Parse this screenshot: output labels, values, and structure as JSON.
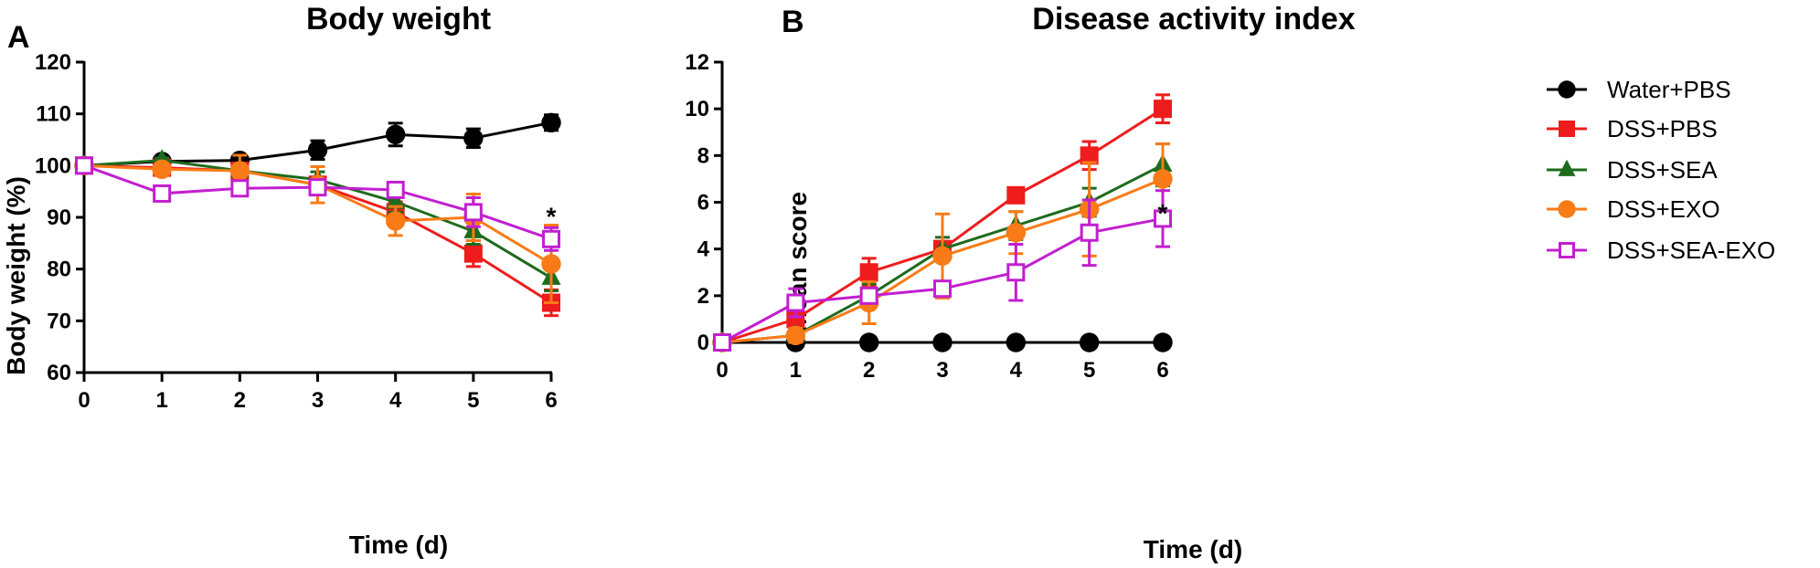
{
  "legend": {
    "position": "top-right",
    "entries": [
      {
        "series": "Water+PBS",
        "color": "#000000",
        "marker": "circle"
      },
      {
        "series": "DSS+PBS",
        "color": "#ee1c1c",
        "marker": "square"
      },
      {
        "series": "DSS+SEA",
        "color": "#1e6b1e",
        "marker": "triangle"
      },
      {
        "series": "DSS+EXO",
        "color": "#f97b17",
        "marker": "circle"
      },
      {
        "series": "DSS+SEA-EXO",
        "color": "#c21fd0",
        "marker": "open-square"
      }
    ]
  },
  "chart_data": [
    {
      "panel": "A",
      "type": "line",
      "title": "Body weight",
      "xlabel": "Time (d)",
      "ylabel": "Body weight (%)",
      "x": [
        0,
        1,
        2,
        3,
        4,
        5,
        6
      ],
      "xlim": [
        0,
        6
      ],
      "ylim": [
        60,
        120
      ],
      "xticks": [
        0,
        1,
        2,
        3,
        4,
        5,
        6
      ],
      "yticks": [
        60,
        70,
        80,
        90,
        100,
        110,
        120
      ],
      "grid": false,
      "annotations": [
        {
          "text": "*",
          "x": 6,
          "y": 91
        }
      ],
      "series": [
        {
          "name": "Water+PBS",
          "values": [
            100,
            100.8,
            101,
            103,
            106,
            105.3,
            108.3
          ],
          "errors": [
            0,
            0.5,
            0.5,
            1.8,
            2.2,
            1.8,
            1.5
          ]
        },
        {
          "name": "DSS+PBS",
          "values": [
            100,
            99.6,
            99,
            96.3,
            91,
            83,
            73.5
          ],
          "errors": [
            0,
            0.5,
            0.6,
            1.5,
            2,
            2.5,
            2.5
          ]
        },
        {
          "name": "DSS+SEA",
          "values": [
            100,
            101,
            99,
            97.3,
            93,
            87.3,
            78.3
          ],
          "errors": [
            0,
            0.5,
            0.6,
            1.5,
            2,
            2.5,
            2.5
          ]
        },
        {
          "name": "DSS+EXO",
          "values": [
            100,
            99.3,
            99,
            96.3,
            89.3,
            90,
            81
          ],
          "errors": [
            0,
            0.8,
            3,
            3.5,
            2.8,
            4.5,
            7.5
          ]
        },
        {
          "name": "DSS+SEA-EXO",
          "values": [
            100,
            94.6,
            95.6,
            95.8,
            95.3,
            91,
            85.8
          ],
          "errors": [
            0,
            1.2,
            0.8,
            0.8,
            0.8,
            2.8,
            2.2
          ]
        }
      ]
    },
    {
      "panel": "B",
      "type": "line",
      "title": "Disease activity index",
      "xlabel": "Time (d)",
      "ylabel": "Mean score",
      "x": [
        0,
        1,
        2,
        3,
        4,
        5,
        6
      ],
      "xlim": [
        0,
        6
      ],
      "ylim": [
        0,
        12
      ],
      "xticks": [
        0,
        1,
        2,
        3,
        4,
        5,
        6
      ],
      "yticks": [
        0,
        2,
        4,
        6,
        8,
        10,
        12
      ],
      "grid": false,
      "annotations": [
        {
          "text": "*",
          "x": 6,
          "y": 5.7
        }
      ],
      "series": [
        {
          "name": "Water+PBS",
          "values": [
            0,
            0,
            0,
            0,
            0,
            0,
            0
          ],
          "errors": [
            0,
            0,
            0,
            0,
            0,
            0,
            0
          ]
        },
        {
          "name": "DSS+PBS",
          "values": [
            0,
            1,
            3,
            4,
            6.3,
            8,
            10
          ],
          "errors": [
            0,
            0.3,
            0.6,
            0.3,
            0.3,
            0.6,
            0.6
          ]
        },
        {
          "name": "DSS+SEA",
          "values": [
            0,
            0.3,
            2,
            4,
            5,
            6,
            7.6
          ],
          "errors": [
            0,
            0.3,
            0.5,
            0.5,
            0.6,
            0.6,
            0.9
          ]
        },
        {
          "name": "DSS+EXO",
          "values": [
            0,
            0.3,
            1.7,
            3.7,
            4.7,
            5.7,
            7
          ],
          "errors": [
            0,
            0.3,
            0.9,
            1.8,
            0.9,
            2,
            1.5
          ]
        },
        {
          "name": "DSS+SEA-EXO",
          "values": [
            0,
            1.7,
            2,
            2.3,
            3,
            4.7,
            5.3
          ],
          "errors": [
            0,
            0.6,
            0.3,
            0.3,
            1.2,
            1.4,
            1.2
          ]
        }
      ]
    }
  ]
}
